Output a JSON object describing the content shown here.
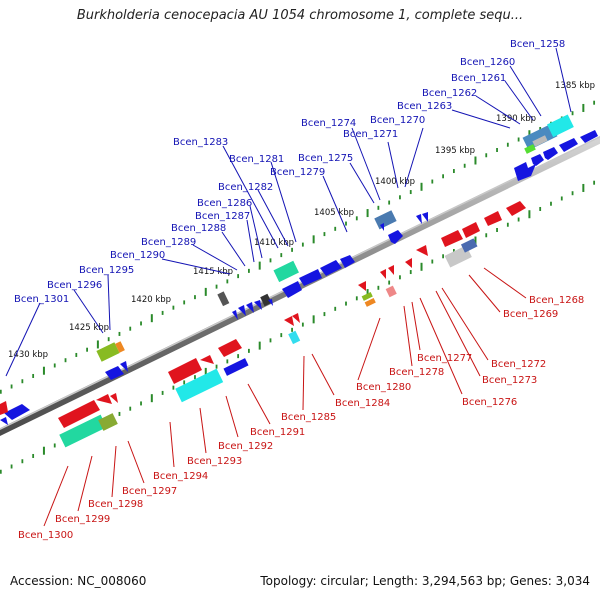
{
  "title": "Burkholderia cenocepacia AU 1054 chromosome 1, complete sequ...",
  "footer": {
    "accession": "Accession: NC_008060",
    "summary": "Topology: circular; Length: 3,294,563 bp; Genes: 3,034"
  },
  "colors": {
    "forward_strand": "#1515e0",
    "reverse_strand": "#e0141e",
    "forward_label": "#1414b4",
    "reverse_label": "#c81414",
    "backbone": "#8a8a8a",
    "tick": "#2a8a2a"
  },
  "kbp_ticks": [
    "1385 kbp",
    "1390 kbp",
    "1395 kbp",
    "1400 kbp",
    "1405 kbp",
    "1410 kbp",
    "1415 kbp",
    "1420 kbp",
    "1425 kbp",
    "1430 kbp"
  ],
  "forward_genes": [
    "Bcen_1258",
    "Bcen_1260",
    "Bcen_1261",
    "Bcen_1262",
    "Bcen_1263",
    "Bcen_1270",
    "Bcen_1271",
    "Bcen_1274",
    "Bcen_1275",
    "Bcen_1279",
    "Bcen_1281",
    "Bcen_1282",
    "Bcen_1283",
    "Bcen_1286",
    "Bcen_1287",
    "Bcen_1288",
    "Bcen_1289",
    "Bcen_1290",
    "Bcen_1295",
    "Bcen_1296",
    "Bcen_1301"
  ],
  "reverse_genes": [
    "Bcen_1268",
    "Bcen_1269",
    "Bcen_1272",
    "Bcen_1273",
    "Bcen_1276",
    "Bcen_1277",
    "Bcen_1278",
    "Bcen_1280",
    "Bcen_1284",
    "Bcen_1285",
    "Bcen_1291",
    "Bcen_1292",
    "Bcen_1293",
    "Bcen_1294",
    "Bcen_1297",
    "Bcen_1298",
    "Bcen_1299",
    "Bcen_1300"
  ]
}
